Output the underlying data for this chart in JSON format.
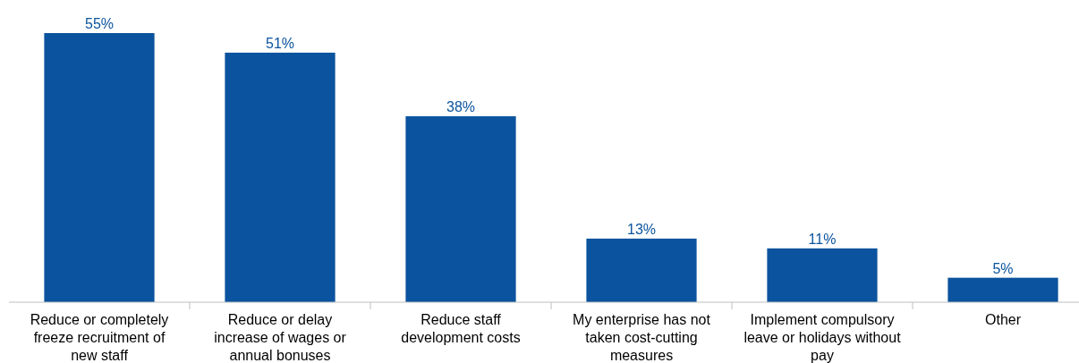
{
  "chart_data": {
    "type": "bar",
    "categories": [
      "Reduce or completely freeze recruitment of new staff",
      "Reduce or delay increase of wages or annual bonuses",
      "Reduce staff development costs",
      "My enterprise has not taken cost-cutting measures",
      "Implement compulsory leave or holidays without pay",
      "Other"
    ],
    "values": [
      55,
      51,
      38,
      13,
      11,
      5
    ],
    "value_labels": [
      "55%",
      "51%",
      "38%",
      "13%",
      "11%",
      "5%"
    ],
    "color": "#0b539e"
  }
}
